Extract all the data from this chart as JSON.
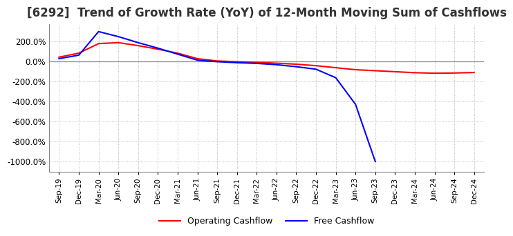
{
  "title": "[6292]  Trend of Growth Rate (YoY) of 12-Month Moving Sum of Cashflows",
  "title_fontsize": 12,
  "ylim": [
    -1100,
    370
  ],
  "yticks": [
    200.0,
    0.0,
    -200.0,
    -400.0,
    -600.0,
    -800.0,
    -1000.0
  ],
  "x_labels": [
    "Sep-19",
    "Dec-19",
    "Mar-20",
    "Jun-20",
    "Sep-20",
    "Dec-20",
    "Mar-21",
    "Jun-21",
    "Sep-21",
    "Dec-21",
    "Mar-22",
    "Jun-22",
    "Sep-22",
    "Dec-22",
    "Mar-23",
    "Jun-23",
    "Sep-23",
    "Dec-23",
    "Mar-24",
    "Jun-24",
    "Sep-24",
    "Dec-24"
  ],
  "operating_cashflow": [
    40,
    80,
    175,
    185,
    155,
    120,
    80,
    25,
    2,
    -5,
    -12,
    -20,
    -30,
    -45,
    -65,
    -85,
    -95,
    -105,
    -115,
    -120,
    -118,
    -113
  ],
  "free_cashflow_x": [
    "Sep-19",
    "Dec-19",
    "Mar-20",
    "Jun-20",
    "Sep-20",
    "Dec-20",
    "Mar-21",
    "Jun-21",
    "Sep-21",
    "Dec-21",
    "Mar-22",
    "Jun-22",
    "Sep-22",
    "Dec-22",
    "Mar-23",
    "Jun-23",
    "Sep-23"
  ],
  "free_cashflow": [
    25,
    60,
    295,
    245,
    185,
    130,
    70,
    10,
    -5,
    -15,
    -22,
    -35,
    -55,
    -80,
    -165,
    -430,
    -1000
  ],
  "operating_color": "#ff0000",
  "free_color": "#0000ff",
  "grid_color": "#aaaaaa",
  "zero_line_color": "#888888",
  "background_color": "#ffffff",
  "line_width": 1.5
}
